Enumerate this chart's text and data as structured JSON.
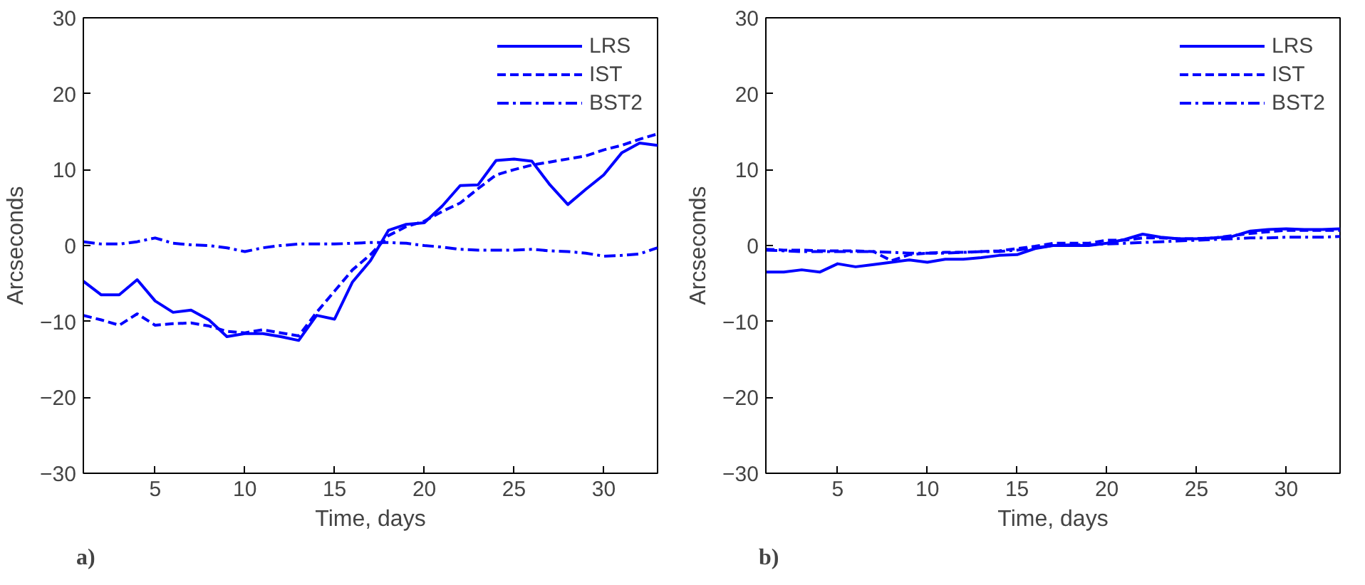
{
  "chart_data": [
    {
      "type": "line",
      "xlabel": "Time, days",
      "ylabel": "Arcseconds",
      "annotations": [
        "a)"
      ],
      "x": [
        1,
        2,
        3,
        4,
        5,
        6,
        7,
        8,
        9,
        10,
        11,
        12,
        13,
        14,
        15,
        16,
        17,
        18,
        19,
        20,
        21,
        22,
        23,
        24,
        25,
        26,
        27,
        28,
        29,
        30,
        31,
        32,
        33
      ],
      "xlim": [
        1,
        33
      ],
      "ylim": [
        -30,
        30
      ],
      "xticks": [
        5,
        10,
        15,
        20,
        25,
        30
      ],
      "yticks": [
        -30,
        -20,
        -10,
        0,
        10,
        20,
        30
      ],
      "grid": false,
      "legend": "top right",
      "marker": "none",
      "series": [
        {
          "name": "LRS",
          "color": "#0000ff",
          "line_style": "solid",
          "values": [
            -4.7,
            -6.5,
            -6.5,
            -4.5,
            -7.3,
            -8.8,
            -8.5,
            -9.8,
            -12,
            -11.6,
            -11.6,
            -12,
            -12.5,
            -9.2,
            -9.7,
            -4.8,
            -2,
            2,
            2.8,
            3,
            5.2,
            7.9,
            8,
            11.2,
            11.4,
            11.1,
            8,
            5.4,
            7.4,
            9.3,
            12.2,
            13.5,
            13.2
          ]
        },
        {
          "name": "IST",
          "color": "#0000ff",
          "line_style": "dashed",
          "values": [
            -9.2,
            -9.8,
            -10.5,
            -9,
            -10.5,
            -10.3,
            -10.2,
            -10.6,
            -11.3,
            -11.5,
            -11.1,
            -11.5,
            -11.9,
            -8.8,
            -6,
            -3.2,
            -1.2,
            1.3,
            2.5,
            3.2,
            4.5,
            5.6,
            7.5,
            9.3,
            10,
            10.6,
            11,
            11.4,
            11.8,
            12.6,
            13.2,
            14,
            14.7
          ]
        },
        {
          "name": "BST2",
          "color": "#0000ff",
          "line_style": "dashdot",
          "values": [
            0.5,
            0.2,
            0.2,
            0.5,
            1,
            0.3,
            0.1,
            0,
            -0.3,
            -0.8,
            -0.3,
            0,
            0.2,
            0.2,
            0.2,
            0.3,
            0.4,
            0.4,
            0.3,
            0,
            -0.2,
            -0.5,
            -0.6,
            -0.6,
            -0.6,
            -0.5,
            -0.7,
            -0.8,
            -1,
            -1.4,
            -1.3,
            -1.1,
            -0.3
          ]
        }
      ]
    },
    {
      "type": "line",
      "xlabel": "Time, days",
      "ylabel": "Arcseconds",
      "annotations": [
        "b)"
      ],
      "x": [
        1,
        2,
        3,
        4,
        5,
        6,
        7,
        8,
        9,
        10,
        11,
        12,
        13,
        14,
        15,
        16,
        17,
        18,
        19,
        20,
        21,
        22,
        23,
        24,
        25,
        26,
        27,
        28,
        29,
        30,
        31,
        32,
        33
      ],
      "xlim": [
        1,
        33
      ],
      "ylim": [
        -30,
        30
      ],
      "xticks": [
        5,
        10,
        15,
        20,
        25,
        30
      ],
      "yticks": [
        -30,
        -20,
        -10,
        0,
        10,
        20,
        30
      ],
      "grid": false,
      "legend": "top right",
      "marker": "none",
      "series": [
        {
          "name": "LRS",
          "color": "#0000ff",
          "line_style": "solid",
          "values": [
            -3.5,
            -3.5,
            -3.2,
            -3.5,
            -2.4,
            -2.8,
            -2.5,
            -2.2,
            -1.9,
            -2.2,
            -1.8,
            -1.8,
            -1.6,
            -1.3,
            -1.2,
            -0.4,
            0,
            0,
            0,
            0.3,
            0.8,
            1.5,
            1.1,
            0.9,
            0.9,
            1,
            1.2,
            1.9,
            2.1,
            2.2,
            2.1,
            2.1,
            2.2
          ]
        },
        {
          "name": "IST",
          "color": "#0000ff",
          "line_style": "dashed",
          "values": [
            -0.5,
            -0.6,
            -0.6,
            -0.7,
            -0.7,
            -0.7,
            -0.8,
            -2,
            -1.2,
            -1,
            -0.9,
            -0.9,
            -0.8,
            -0.7,
            -0.4,
            -0.1,
            0.3,
            0.3,
            0.3,
            0.7,
            0.7,
            1,
            1,
            0.9,
            0.9,
            1,
            1.3,
            1.6,
            1.8,
            2,
            2,
            2,
            2
          ]
        },
        {
          "name": "BST2",
          "color": "#0000ff",
          "line_style": "dashdot",
          "values": [
            -0.6,
            -0.7,
            -0.8,
            -0.8,
            -0.8,
            -0.8,
            -0.8,
            -0.9,
            -1,
            -1,
            -1,
            -0.9,
            -0.8,
            -0.8,
            -0.6,
            -0.3,
            0,
            0.1,
            0.1,
            0.2,
            0.3,
            0.4,
            0.5,
            0.6,
            0.7,
            0.8,
            0.9,
            1,
            1,
            1.1,
            1.1,
            1.1,
            1.2
          ]
        }
      ]
    }
  ]
}
